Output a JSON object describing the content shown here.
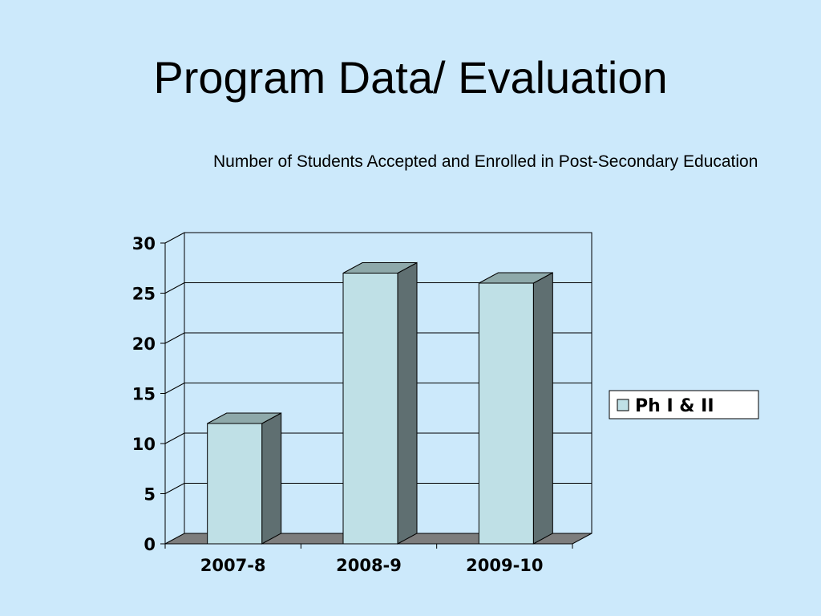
{
  "slide": {
    "title": "Program Data/ Evaluation",
    "subtitle": "Number of Students Accepted and Enrolled in Post-Secondary Education"
  },
  "colors": {
    "background": "#cce9fb",
    "bar_front": "#bfe0e6",
    "bar_side": "#5f6f71",
    "bar_top": "#8ea9aa",
    "floor": "#7d7d7d"
  },
  "chart_data": {
    "type": "bar",
    "categories": [
      "2007-8",
      "2008-9",
      "2009-10"
    ],
    "series": [
      {
        "name": "Ph I & II",
        "values": [
          12,
          27,
          26
        ]
      }
    ],
    "ylim": [
      0,
      30
    ],
    "yticks": [
      "0",
      "5",
      "10",
      "15",
      "20",
      "25",
      "30"
    ],
    "grid": true,
    "legend": "right",
    "three_d": true
  }
}
